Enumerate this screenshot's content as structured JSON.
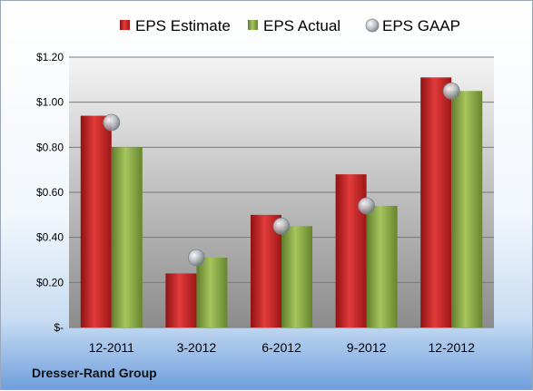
{
  "company": "Dresser-Rand Group",
  "chart_data": {
    "type": "bar",
    "categories": [
      "12-2011",
      "3-2012",
      "6-2012",
      "9-2012",
      "12-2012"
    ],
    "series": [
      {
        "name": "EPS Estimate",
        "values": [
          0.94,
          0.24,
          0.5,
          0.68,
          1.11
        ],
        "color": "#d42a2a",
        "mark": "bar"
      },
      {
        "name": "EPS Actual",
        "values": [
          0.8,
          0.31,
          0.45,
          0.54,
          1.05
        ],
        "color": "#8fb04a",
        "mark": "bar"
      },
      {
        "name": "EPS GAAP",
        "values": [
          0.91,
          0.31,
          0.45,
          0.54,
          1.05
        ],
        "color": "#a8adb4",
        "mark": "marker"
      }
    ],
    "y_ticks": [
      {
        "value": 0,
        "label": "$-"
      },
      {
        "value": 0.2,
        "label": "$0.20"
      },
      {
        "value": 0.4,
        "label": "$0.40"
      },
      {
        "value": 0.6,
        "label": "$0.60"
      },
      {
        "value": 0.8,
        "label": "$0.80"
      },
      {
        "value": 1.0,
        "label": "$1.00"
      },
      {
        "value": 1.2,
        "label": "$1.20"
      }
    ],
    "ylim": [
      0,
      1.2
    ],
    "grid": true,
    "legend_position": "top"
  }
}
